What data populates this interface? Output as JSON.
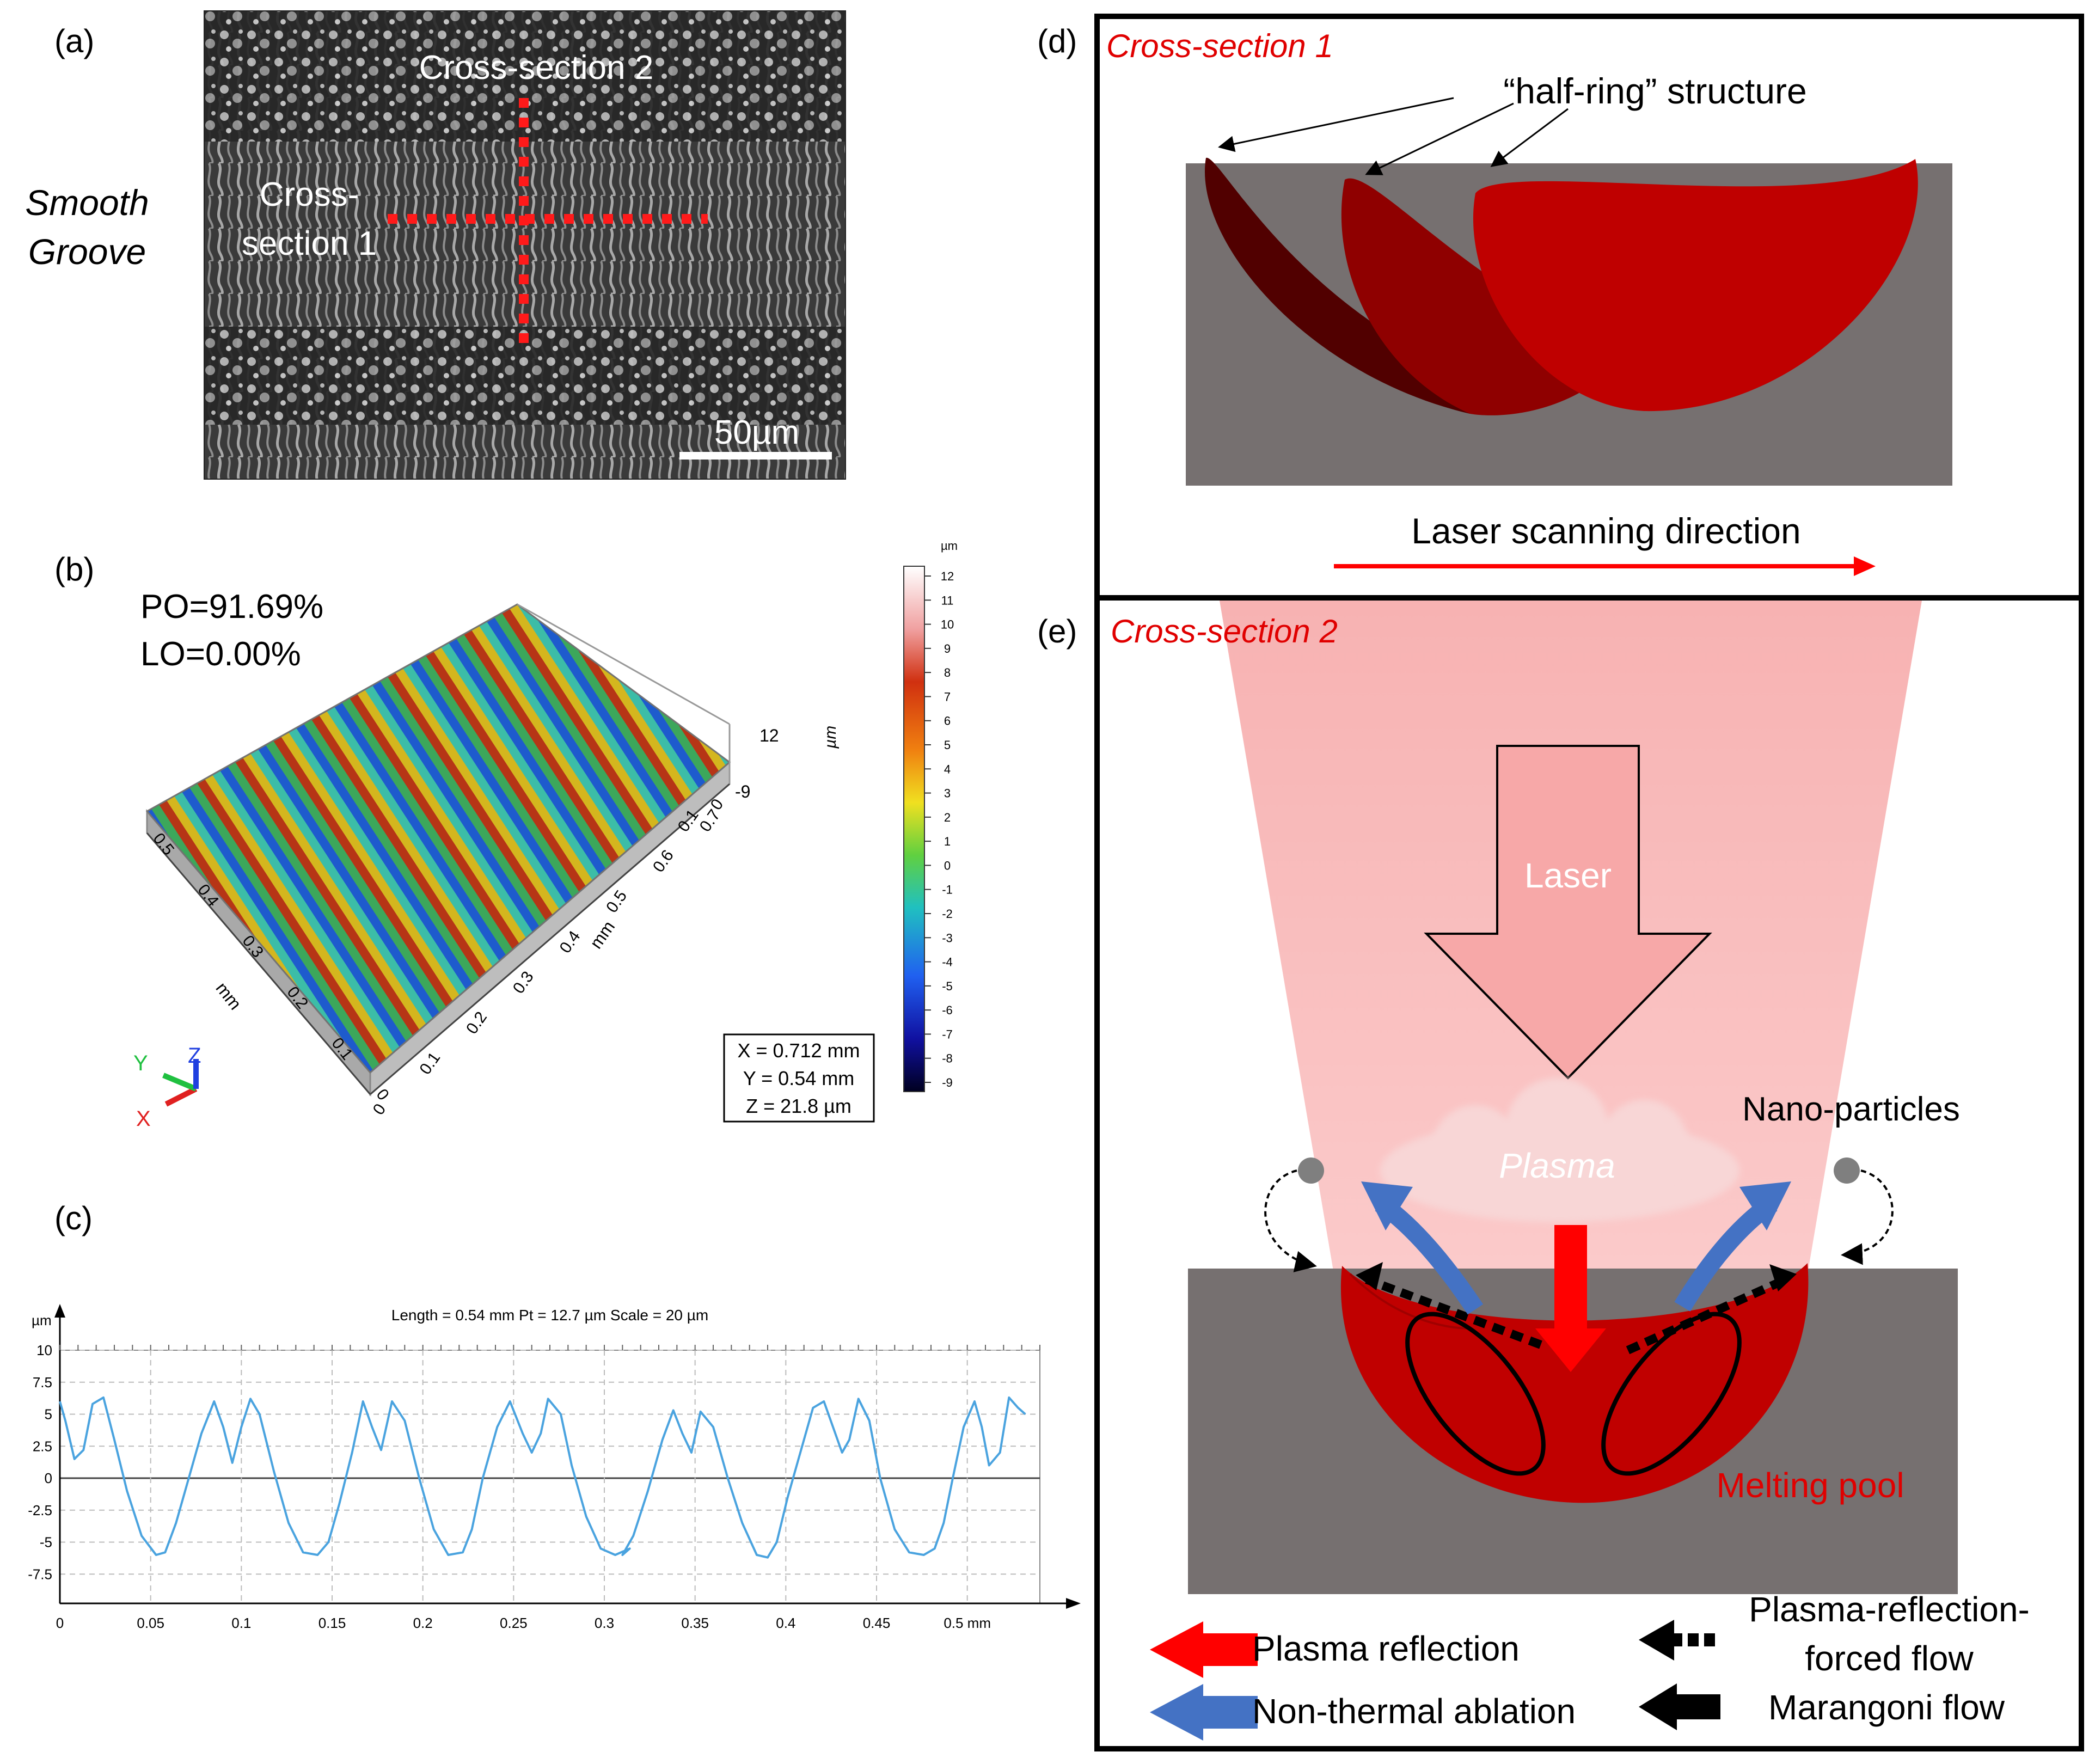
{
  "panel_a": {
    "label": "(a)",
    "side_label_line1": "Smooth",
    "side_label_line2": "Groove",
    "cs2_label": "Cross-section 2",
    "cs1_label_line1": "Cross-",
    "cs1_label_line2": "section 1",
    "scale_bar_label": "50µm"
  },
  "panel_b": {
    "label": "(b)",
    "po_text": "PO=91.69%",
    "lo_text": "LO=0.00%",
    "colorbar_unit": "µm",
    "colorbar_ticks": [
      "12",
      "11",
      "10",
      "9",
      "8",
      "7",
      "6",
      "5",
      "4",
      "3",
      "2",
      "1",
      "0",
      "-1",
      "-2",
      "-3",
      "-4",
      "-5",
      "-6",
      "-7",
      "-8",
      "-9"
    ],
    "axis_x_ticks": [
      "0",
      "0.1",
      "0.2",
      "0.3",
      "0.4",
      "0.5",
      "0.6",
      "0.7"
    ],
    "axis_y_ticks": [
      "0",
      "0.1",
      "0.2",
      "0.3",
      "0.4",
      "0.5"
    ],
    "axis_right_ticks": [
      "0",
      "0.1"
    ],
    "axis_unit": "mm",
    "z_max": "12",
    "z_min": "-9",
    "z_unit": "µm",
    "dims_x": "X = 0.712 mm",
    "dims_y": "Y = 0.54 mm",
    "dims_z": "Z = 21.8 µm",
    "triad_x": "X",
    "triad_y": "Y",
    "triad_z": "Z"
  },
  "panel_c": {
    "label": "(c)",
    "header": "Length = 0.54 mm  Pt = 12.7 µm  Scale = 20 µm"
  },
  "panel_d": {
    "label": "(d)",
    "title": "Cross-section 1",
    "half_ring_label": "“half-ring” structure",
    "scan_direction_label": "Laser scanning direction"
  },
  "panel_e": {
    "label": "(e)",
    "title": "Cross-section 2",
    "laser_label": "Laser",
    "plasma_label": "Plasma",
    "nano_label": "Nano-particles",
    "melting_pool_label": "Melting pool",
    "legend": {
      "plasma_reflection": "Plasma reflection",
      "non_thermal_ablation": "Non-thermal ablation",
      "plasma_forced_flow_line1": "Plasma-reflection-",
      "plasma_forced_flow_line2": "forced flow",
      "marangoni_flow": "Marangoni flow"
    }
  },
  "chart_data": {
    "type": "line",
    "title": "Length = 0.54 mm  Pt = 12.7 µm  Scale = 20 µm",
    "xlabel": "mm",
    "ylabel": "µm",
    "xlim": [
      0,
      0.56
    ],
    "ylim": [
      -10,
      10
    ],
    "x_ticks": [
      0,
      0.05,
      0.1,
      0.15,
      0.2,
      0.25,
      0.3,
      0.35,
      0.4,
      0.45,
      0.5
    ],
    "x_tick_labels": [
      "0",
      "0.05",
      "0.1",
      "0.15",
      "0.2",
      "0.25",
      "0.3",
      "0.35",
      "0.4",
      "0.45",
      "0.5 mm"
    ],
    "y_ticks": [
      10,
      7.5,
      5,
      2.5,
      0,
      -2.5,
      -5,
      -7.5
    ],
    "y_tick_labels": [
      "10",
      "7.5",
      "5",
      "2.5",
      "0",
      "-2.5",
      "-5",
      "-7.5"
    ],
    "grid": true,
    "series": [
      {
        "name": "profile",
        "x": [
          0,
          0.003,
          0.008,
          0.013,
          0.018,
          0.024,
          0.03,
          0.037,
          0.045,
          0.053,
          0.058,
          0.064,
          0.071,
          0.078,
          0.085,
          0.09,
          0.095,
          0.1,
          0.105,
          0.11,
          0.118,
          0.126,
          0.134,
          0.142,
          0.148,
          0.154,
          0.161,
          0.167,
          0.172,
          0.177,
          0.183,
          0.19,
          0.198,
          0.206,
          0.214,
          0.222,
          0.227,
          0.233,
          0.241,
          0.248,
          0.255,
          0.26,
          0.265,
          0.269,
          0.276,
          0.282,
          0.29,
          0.298,
          0.306,
          0.314,
          0.31,
          0.316,
          0.324,
          0.332,
          0.338,
          0.343,
          0.348,
          0.353,
          0.36,
          0.368,
          0.376,
          0.384,
          0.39,
          0.395,
          0.401,
          0.408,
          0.415,
          0.421,
          0.426,
          0.431,
          0.435,
          0.44,
          0.446,
          0.452,
          0.46,
          0.468,
          0.476,
          0.482,
          0.487,
          0.492,
          0.498,
          0.504,
          0.508,
          0.512,
          0.518,
          0.523,
          0.528,
          0.532
        ],
        "values": [
          6.0,
          4.5,
          1.5,
          2.2,
          5.8,
          6.3,
          3.0,
          -1.0,
          -4.5,
          -6.0,
          -5.8,
          -3.5,
          0.0,
          3.5,
          6.0,
          4.0,
          1.2,
          4.0,
          6.2,
          5.0,
          0.5,
          -3.5,
          -5.8,
          -6.0,
          -5.0,
          -2.0,
          2.0,
          6.0,
          4.0,
          2.2,
          6.0,
          4.5,
          0.0,
          -4.0,
          -6.0,
          -5.8,
          -4.0,
          0.0,
          4.0,
          6.0,
          3.5,
          2.0,
          3.5,
          6.2,
          5.0,
          1.0,
          -3.0,
          -5.5,
          -6.0,
          -5.5,
          -6.0,
          -4.5,
          -1.0,
          3.0,
          5.3,
          3.5,
          2.0,
          5.2,
          4.0,
          0.0,
          -3.5,
          -6.0,
          -6.2,
          -5.0,
          -1.5,
          2.0,
          5.5,
          6.0,
          4.0,
          2.0,
          3.0,
          6.2,
          4.5,
          0.0,
          -4.0,
          -5.8,
          -6.0,
          -5.5,
          -3.5,
          0.0,
          4.0,
          6.0,
          4.0,
          1.0,
          2.0,
          6.3,
          5.5,
          5.0
        ]
      }
    ]
  }
}
